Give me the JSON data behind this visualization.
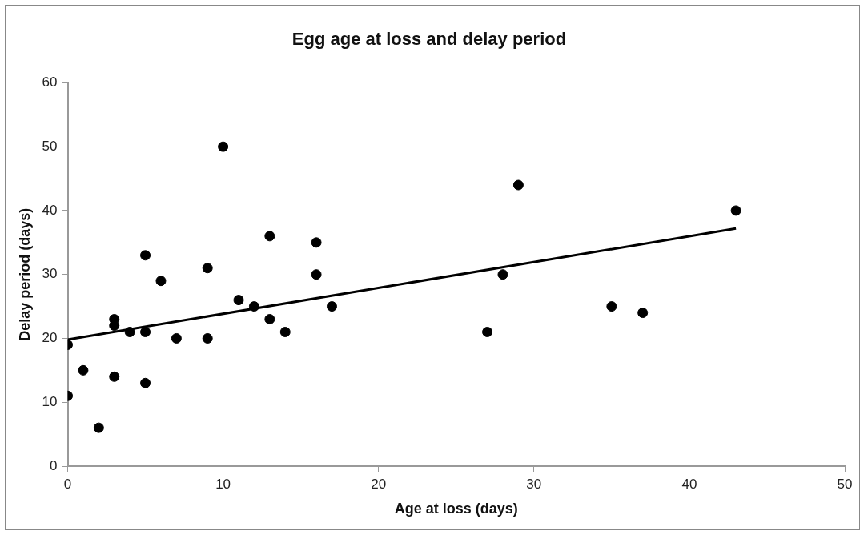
{
  "chart_data": {
    "type": "scatter",
    "title": "Egg age at loss and delay period",
    "xlabel": "Age at loss (days)",
    "ylabel": "Delay period (days)",
    "x": [
      0,
      0,
      1,
      2,
      3,
      3,
      3,
      4,
      5,
      5,
      5,
      6,
      7,
      9,
      9,
      10,
      11,
      12,
      13,
      13,
      14,
      16,
      16,
      17,
      27,
      28,
      29,
      35,
      37,
      43
    ],
    "series": [
      {
        "color": "#000000",
        "marker": "circle",
        "values": [
          19,
          11,
          15,
          6,
          23,
          22,
          14,
          21,
          33,
          21,
          13,
          29,
          20,
          31,
          20,
          50,
          26,
          25,
          36,
          23,
          21,
          35,
          30,
          25,
          21,
          30,
          44,
          25,
          24,
          40
        ]
      },
      {
        "type": "line",
        "color": "#000000",
        "marker": "none",
        "x": [
          0,
          43
        ],
        "values": [
          19.8,
          37.2
        ]
      }
    ],
    "xlim": [
      0,
      50
    ],
    "xticks": [
      0,
      10,
      20,
      30,
      40,
      50
    ],
    "ylim": [
      0,
      60
    ],
    "yticks": [
      0,
      10,
      20,
      30,
      40,
      50,
      60
    ],
    "grid": false,
    "legend": false
  }
}
